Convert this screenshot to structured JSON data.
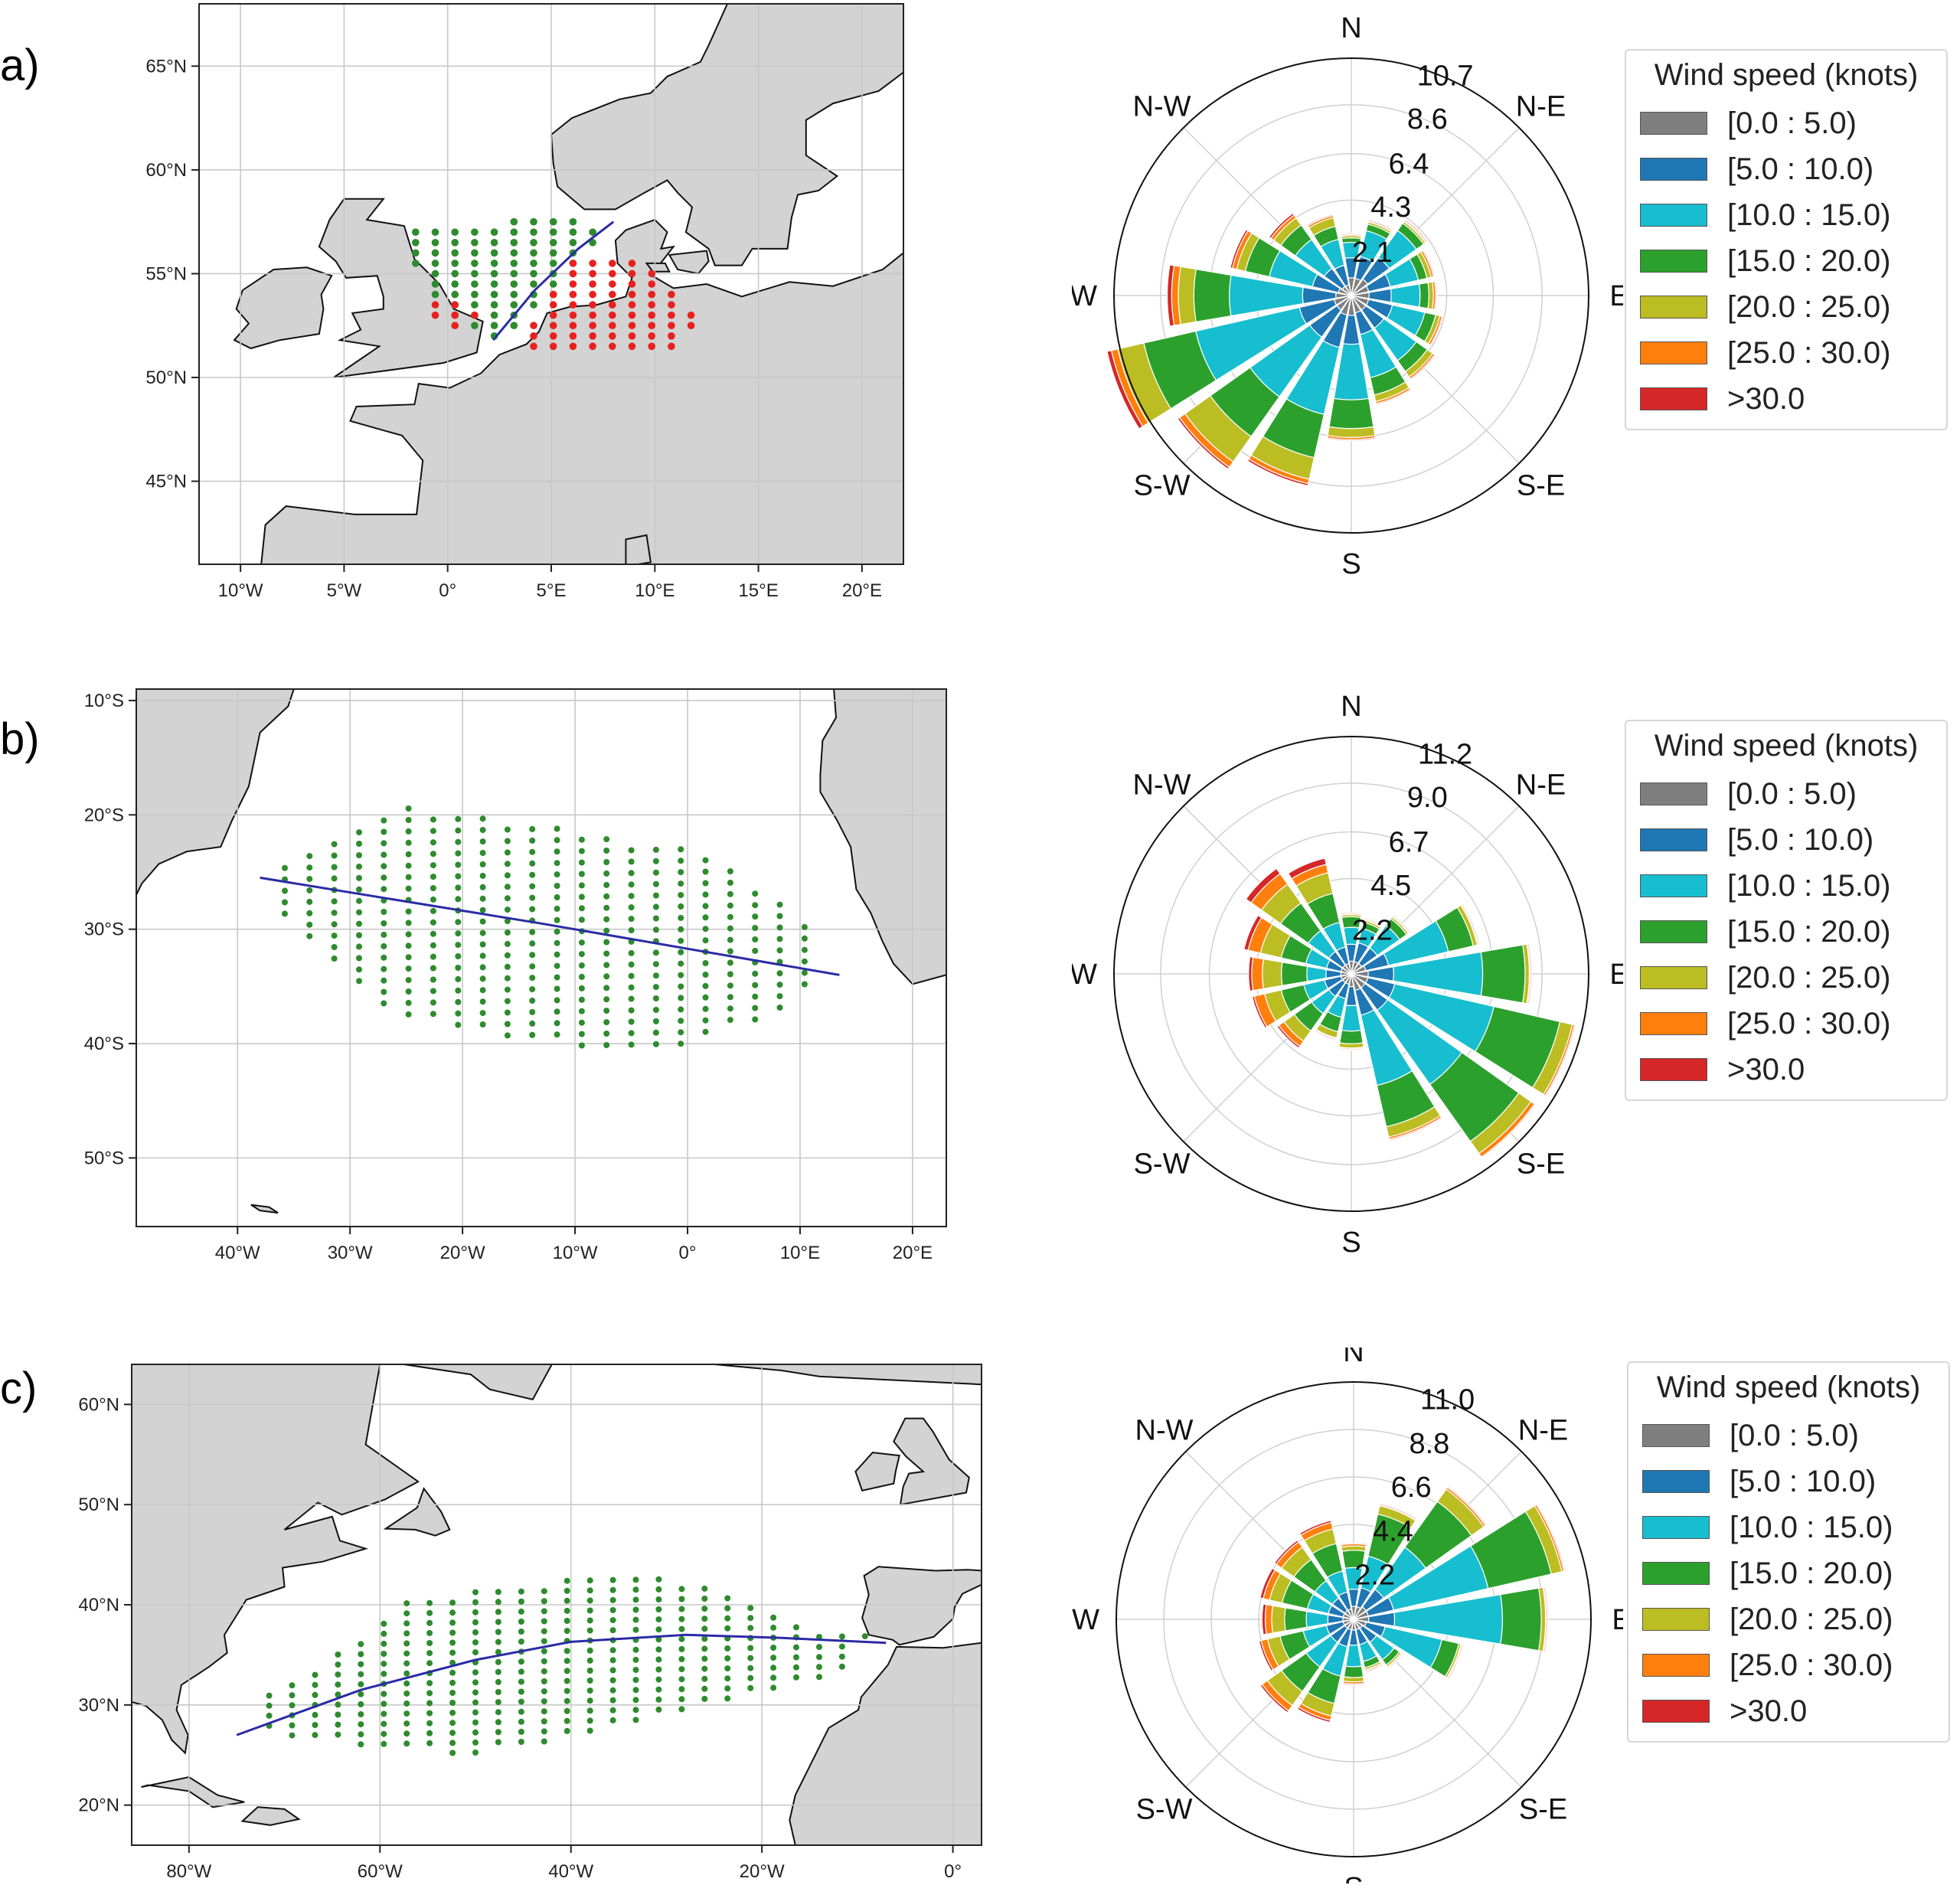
{
  "panels": [
    {
      "label": "a)",
      "map": {
        "lon_range": [
          -12,
          22
        ],
        "lat_range": [
          41,
          68
        ],
        "lon_ticks": [
          -10,
          -5,
          0,
          5,
          10,
          15,
          20
        ],
        "lon_tick_labels": [
          "10°W",
          "5°W",
          "0°",
          "5°E",
          "10°E",
          "15°E",
          "20°E"
        ],
        "lat_ticks": [
          45,
          50,
          55,
          60,
          65
        ],
        "lat_tick_labels": [
          "45°N",
          "50°N",
          "55°N",
          "60°N",
          "65°N"
        ],
        "route": [
          [
            2.2,
            51.8
          ],
          [
            4.2,
            54.2
          ],
          [
            6.3,
            56.2
          ],
          [
            8.0,
            57.5
          ]
        ],
        "point_groups": [
          {
            "color": "#2e8b2e",
            "region": [
              [
                -2.0,
                57.2
              ],
              [
                5.5,
                57.7
              ],
              [
                7.8,
                57.2
              ],
              [
                5.5,
                54.2
              ],
              [
                3.0,
                52.0
              ],
              [
                2.0,
                51.6
              ],
              [
                0.0,
                53.2
              ],
              [
                -2.0,
                55.8
              ]
            ]
          },
          {
            "color": "#e8211f",
            "region": [
              [
                6.0,
                55.8
              ],
              [
                9.5,
                55.7
              ],
              [
                10.5,
                54.8
              ],
              [
                12.2,
                52.8
              ],
              [
                10.5,
                51.0
              ],
              [
                6.0,
                51.2
              ],
              [
                3.2,
                51.4
              ],
              [
                4.5,
                53.0
              ]
            ]
          },
          {
            "color": "#e8211f",
            "region": [
              [
                -1.0,
                53.8
              ],
              [
                1.2,
                53.6
              ],
              [
                1.8,
                52.6
              ],
              [
                0.0,
                52.4
              ],
              [
                -1.2,
                53.0
              ]
            ]
          }
        ]
      },
      "windrose": {
        "rmax": 10.7,
        "r_ticks": [
          2.1,
          4.3,
          6.4,
          8.6,
          10.7
        ],
        "r_tick_labels": [
          "2.1",
          "4.3",
          "6.4",
          "8.6",
          "10.7"
        ],
        "directions": [
          "N",
          "NNE",
          "NE",
          "ENE",
          "E",
          "ESE",
          "SE",
          "SSE",
          "S",
          "SSW",
          "SW",
          "WSW",
          "W",
          "WNW",
          "NW",
          "NNW"
        ],
        "freq": [
          [
            0.8,
            0.9,
            0.7,
            0.2,
            0.1,
            0.05,
            0.05
          ],
          [
            0.8,
            1.0,
            1.2,
            0.3,
            0.1,
            0.05,
            0.05
          ],
          [
            0.9,
            1.2,
            1.5,
            0.4,
            0.1,
            0.05,
            0.05
          ],
          [
            0.8,
            1.0,
            1.3,
            0.4,
            0.2,
            0.1,
            0.05
          ],
          [
            0.8,
            1.0,
            1.3,
            0.4,
            0.2,
            0.1,
            0.05
          ],
          [
            0.8,
            1.1,
            1.5,
            0.5,
            0.2,
            0.1,
            0.05
          ],
          [
            0.8,
            1.0,
            1.8,
            0.6,
            0.3,
            0.1,
            0.05
          ],
          [
            0.8,
            1.0,
            2.0,
            0.8,
            0.3,
            0.1,
            0.05
          ],
          [
            0.9,
            1.3,
            2.5,
            1.3,
            0.4,
            0.1,
            0.05
          ],
          [
            0.9,
            1.5,
            3.1,
            2.0,
            1.0,
            0.2,
            0.1
          ],
          [
            0.8,
            1.5,
            3.3,
            2.2,
            1.4,
            0.3,
            0.1
          ],
          [
            0.8,
            1.6,
            4.8,
            2.4,
            1.2,
            0.3,
            0.2
          ],
          [
            0.7,
            1.5,
            3.3,
            1.6,
            0.7,
            0.3,
            0.2
          ],
          [
            0.6,
            1.2,
            2.0,
            1.1,
            0.4,
            0.2,
            0.1
          ],
          [
            0.5,
            1.0,
            1.6,
            0.8,
            0.4,
            0.15,
            0.1
          ],
          [
            0.5,
            0.9,
            1.2,
            0.6,
            0.4,
            0.1,
            0.05
          ]
        ],
        "compass_labels": [
          "N",
          "N-E",
          "E",
          "S-E",
          "S",
          "S-W",
          "W",
          "N-W"
        ]
      },
      "legend": {
        "title": "Wind speed (knots)",
        "items": [
          "[0.0 : 5.0)",
          "[5.0 : 10.0)",
          "[10.0 : 15.0)",
          "[15.0 : 20.0)",
          "[20.0 : 25.0)",
          "[25.0 : 30.0)",
          ">30.0"
        ]
      }
    },
    {
      "label": "b)",
      "map": {
        "lon_range": [
          -49,
          23
        ],
        "lat_range": [
          -56,
          -9
        ],
        "lon_ticks": [
          -40,
          -30,
          -20,
          -10,
          0,
          10,
          20
        ],
        "lon_tick_labels": [
          "40°W",
          "30°W",
          "20°W",
          "10°W",
          "0°",
          "10°E",
          "20°E"
        ],
        "lat_ticks": [
          -10,
          -20,
          -30,
          -40,
          -50
        ],
        "lat_tick_labels": [
          "10°S",
          "20°S",
          "30°S",
          "40°S",
          "50°S"
        ],
        "route": [
          [
            -38.0,
            -25.5
          ],
          [
            -13.0,
            -29.5
          ],
          [
            13.5,
            -34.0
          ]
        ],
        "point_groups": [
          {
            "color": "#2e8b2e",
            "region": [
              [
                -37.0,
                -24.5
              ],
              [
                -26.0,
                -19.0
              ],
              [
                -15.0,
                -20.5
              ],
              [
                0.0,
                -23.0
              ],
              [
                6.0,
                -26.0
              ],
              [
                12.0,
                -31.0
              ],
              [
                10.0,
                -37.0
              ],
              [
                -3.0,
                -41.0
              ],
              [
                -15.0,
                -39.5
              ],
              [
                -27.0,
                -37.0
              ],
              [
                -36.0,
                -29.0
              ]
            ]
          }
        ]
      },
      "windrose": {
        "rmax": 11.2,
        "r_ticks": [
          2.2,
          4.5,
          6.7,
          9.0,
          11.2
        ],
        "r_tick_labels": [
          "2.2",
          "4.5",
          "6.7",
          "9.0",
          "11.2"
        ],
        "directions": [
          "N",
          "NNE",
          "NE",
          "ENE",
          "E",
          "ESE",
          "SE",
          "SSE",
          "S",
          "SSW",
          "SW",
          "WSW",
          "W",
          "WNW",
          "NW",
          "NNW"
        ],
        "freq": [
          [
            0.6,
            0.8,
            0.8,
            0.5,
            0.1,
            0.05,
            0.05
          ],
          [
            0.6,
            0.9,
            0.7,
            0.3,
            0.1,
            0.05,
            0.05
          ],
          [
            0.6,
            0.9,
            1.3,
            0.4,
            0.1,
            0.05,
            0.05
          ],
          [
            0.7,
            1.1,
            2.9,
            1.2,
            0.2,
            0.05,
            0.05
          ],
          [
            0.8,
            1.2,
            4.2,
            2.0,
            0.2,
            0.05,
            0.05
          ],
          [
            0.8,
            1.3,
            4.8,
            3.2,
            0.6,
            0.1,
            0.05
          ],
          [
            0.8,
            1.3,
            4.3,
            3.3,
            0.7,
            0.2,
            0.05
          ],
          [
            0.8,
            1.2,
            3.4,
            2.0,
            0.5,
            0.1,
            0.05
          ],
          [
            0.6,
            0.9,
            1.2,
            0.6,
            0.2,
            0.05,
            0.05
          ],
          [
            0.5,
            0.7,
            0.9,
            0.7,
            0.3,
            0.05,
            0.05
          ],
          [
            0.5,
            0.8,
            1.0,
            1.0,
            0.6,
            0.3,
            0.1
          ],
          [
            0.5,
            0.8,
            1.0,
            1.1,
            0.8,
            0.5,
            0.1
          ],
          [
            0.5,
            0.7,
            0.9,
            1.2,
            0.9,
            0.5,
            0.15
          ],
          [
            0.5,
            0.7,
            1.0,
            1.2,
            1.0,
            0.6,
            0.2
          ],
          [
            0.5,
            0.8,
            1.2,
            1.6,
            1.1,
            0.6,
            0.3
          ],
          [
            0.5,
            0.8,
            1.2,
            1.4,
            1.0,
            0.4,
            0.3
          ]
        ],
        "compass_labels": [
          "N",
          "N-E",
          "E",
          "S-E",
          "S",
          "S-W",
          "W",
          "N-W"
        ]
      },
      "legend": {
        "title": "Wind speed (knots)",
        "items": [
          "[0.0 : 5.0)",
          "[5.0 : 10.0)",
          "[10.0 : 15.0)",
          "[15.0 : 20.0)",
          "[20.0 : 25.0)",
          "[25.0 : 30.0)",
          ">30.0"
        ]
      }
    },
    {
      "label": "c)",
      "map": {
        "lon_range": [
          -86,
          3
        ],
        "lat_range": [
          16,
          64
        ],
        "lon_ticks": [
          -80,
          -60,
          -40,
          -20,
          0
        ],
        "lon_tick_labels": [
          "80°W",
          "60°W",
          "40°W",
          "20°W",
          "0°"
        ],
        "lat_ticks": [
          20,
          30,
          40,
          50,
          60
        ],
        "lat_tick_labels": [
          "20°N",
          "30°N",
          "40°N",
          "50°N",
          "60°N"
        ],
        "route": [
          [
            -75.0,
            27.0
          ],
          [
            -62.0,
            31.5
          ],
          [
            -50.0,
            34.5
          ],
          [
            -40.0,
            36.3
          ],
          [
            -28.0,
            37.0
          ],
          [
            -18.0,
            36.7
          ],
          [
            -7.0,
            36.2
          ]
        ],
        "point_groups": [
          {
            "color": "#2e8b2e",
            "region": [
              [
                -74.0,
                30.0
              ],
              [
                -63.0,
                36.0
              ],
              [
                -58.0,
                40.0
              ],
              [
                -47.0,
                42.0
              ],
              [
                -35.0,
                43.0
              ],
              [
                -25.0,
                42.0
              ],
              [
                -17.0,
                38.0
              ],
              [
                -9.0,
                37.0
              ],
              [
                -12.0,
                33.0
              ],
              [
                -25.0,
                30.0
              ],
              [
                -38.0,
                27.0
              ],
              [
                -50.0,
                25.0
              ],
              [
                -62.0,
                26.0
              ],
              [
                -72.0,
                27.0
              ]
            ]
          }
        ]
      },
      "windrose": {
        "rmax": 11.0,
        "r_ticks": [
          2.2,
          4.4,
          6.6,
          8.8,
          11.0
        ],
        "r_tick_labels": [
          "2.2",
          "4.4",
          "6.6",
          "8.8",
          "11.0"
        ],
        "directions": [
          "N",
          "NNE",
          "NE",
          "ENE",
          "E",
          "ESE",
          "SE",
          "SSE",
          "S",
          "SSW",
          "SW",
          "WSW",
          "W",
          "WNW",
          "NW",
          "NNW"
        ],
        "freq": [
          [
            0.6,
            0.8,
            1.0,
            0.8,
            0.2,
            0.1,
            0.05
          ],
          [
            0.6,
            0.9,
            1.5,
            2.0,
            0.4,
            0.05,
            0.05
          ],
          [
            0.7,
            1.0,
            2.4,
            2.6,
            0.7,
            0.1,
            0.05
          ],
          [
            0.7,
            1.2,
            4.5,
            3.0,
            0.5,
            0.1,
            0.05
          ],
          [
            0.7,
            1.2,
            5.0,
            1.8,
            0.2,
            0.05,
            0.05
          ],
          [
            0.6,
            0.9,
            2.7,
            0.8,
            0.1,
            0.05,
            0.05
          ],
          [
            0.5,
            0.8,
            1.0,
            0.3,
            0.1,
            0.05,
            0.05
          ],
          [
            0.5,
            0.7,
            0.8,
            0.3,
            0.1,
            0.05,
            0.05
          ],
          [
            0.5,
            0.7,
            1.0,
            0.5,
            0.2,
            0.1,
            0.05
          ],
          [
            0.5,
            0.8,
            1.4,
            1.3,
            0.6,
            0.2,
            0.1
          ],
          [
            0.5,
            0.8,
            1.4,
            1.4,
            0.8,
            0.3,
            0.1
          ],
          [
            0.5,
            0.8,
            1.1,
            1.1,
            0.6,
            0.3,
            0.1
          ],
          [
            0.5,
            0.7,
            1.0,
            1.0,
            0.6,
            0.3,
            0.15
          ],
          [
            0.5,
            0.7,
            1.0,
            1.2,
            0.6,
            0.3,
            0.15
          ],
          [
            0.5,
            0.7,
            1.0,
            1.2,
            0.7,
            0.3,
            0.1
          ],
          [
            0.5,
            0.8,
            1.0,
            1.3,
            0.7,
            0.3,
            0.1
          ]
        ],
        "compass_labels": [
          "N",
          "N-E",
          "E",
          "S-E",
          "S",
          "S-W",
          "W",
          "N-W"
        ]
      },
      "legend": {
        "title": "Wind speed (knots)",
        "items": [
          "[0.0 : 5.0)",
          "[5.0 : 10.0)",
          "[10.0 : 15.0)",
          "[15.0 : 20.0)",
          "[20.0 : 25.0)",
          "[25.0 : 30.0)",
          ">30.0"
        ]
      }
    }
  ],
  "colors": {
    "speed_bins": [
      "#7f7f7f",
      "#1f77b4",
      "#17becf",
      "#2ca02c",
      "#bcbd22",
      "#ff7f0e",
      "#d62728"
    ],
    "land": "#d3d3d3",
    "route": "#2b2ba6",
    "grid": "#c8c8c8"
  },
  "chart_data": [
    {
      "type": "windrose",
      "panel": "a)",
      "title": "",
      "legend_title": "Wind speed (knots)",
      "speed_bins": [
        "[0.0 : 5.0)",
        "[5.0 : 10.0)",
        "[10.0 : 15.0)",
        "[15.0 : 20.0)",
        "[20.0 : 25.0)",
        "[25.0 : 30.0)",
        ">30.0"
      ],
      "directions": [
        "N",
        "NNE",
        "NE",
        "ENE",
        "E",
        "ESE",
        "SE",
        "SSE",
        "S",
        "SSW",
        "SW",
        "WSW",
        "W",
        "WNW",
        "NW",
        "NNW"
      ],
      "radial_ticks": [
        2.1,
        4.3,
        6.4,
        8.6,
        10.7
      ],
      "dominant_direction": "WSW / SW"
    },
    {
      "type": "windrose",
      "panel": "b)",
      "title": "",
      "legend_title": "Wind speed (knots)",
      "speed_bins": [
        "[0.0 : 5.0)",
        "[5.0 : 10.0)",
        "[10.0 : 15.0)",
        "[15.0 : 20.0)",
        "[20.0 : 25.0)",
        "[25.0 : 30.0)",
        ">30.0"
      ],
      "directions": [
        "N",
        "NNE",
        "NE",
        "ENE",
        "E",
        "ESE",
        "SE",
        "SSE",
        "S",
        "SSW",
        "SW",
        "WSW",
        "W",
        "WNW",
        "NW",
        "NNW"
      ],
      "radial_ticks": [
        2.2,
        4.5,
        6.7,
        9.0,
        11.2
      ],
      "dominant_direction": "ESE / SE"
    },
    {
      "type": "windrose",
      "panel": "c)",
      "title": "",
      "legend_title": "Wind speed (knots)",
      "speed_bins": [
        "[0.0 : 5.0)",
        "[5.0 : 10.0)",
        "[10.0 : 15.0)",
        "[15.0 : 20.0)",
        "[20.0 : 25.0)",
        "[25.0 : 30.0)",
        ">30.0"
      ],
      "directions": [
        "N",
        "NNE",
        "NE",
        "ENE",
        "E",
        "ESE",
        "SE",
        "SSE",
        "S",
        "SSW",
        "SW",
        "WSW",
        "W",
        "WNW",
        "NW",
        "NNW"
      ],
      "radial_ticks": [
        2.2,
        4.4,
        6.6,
        8.8,
        11.0
      ],
      "dominant_direction": "ENE / E"
    }
  ]
}
